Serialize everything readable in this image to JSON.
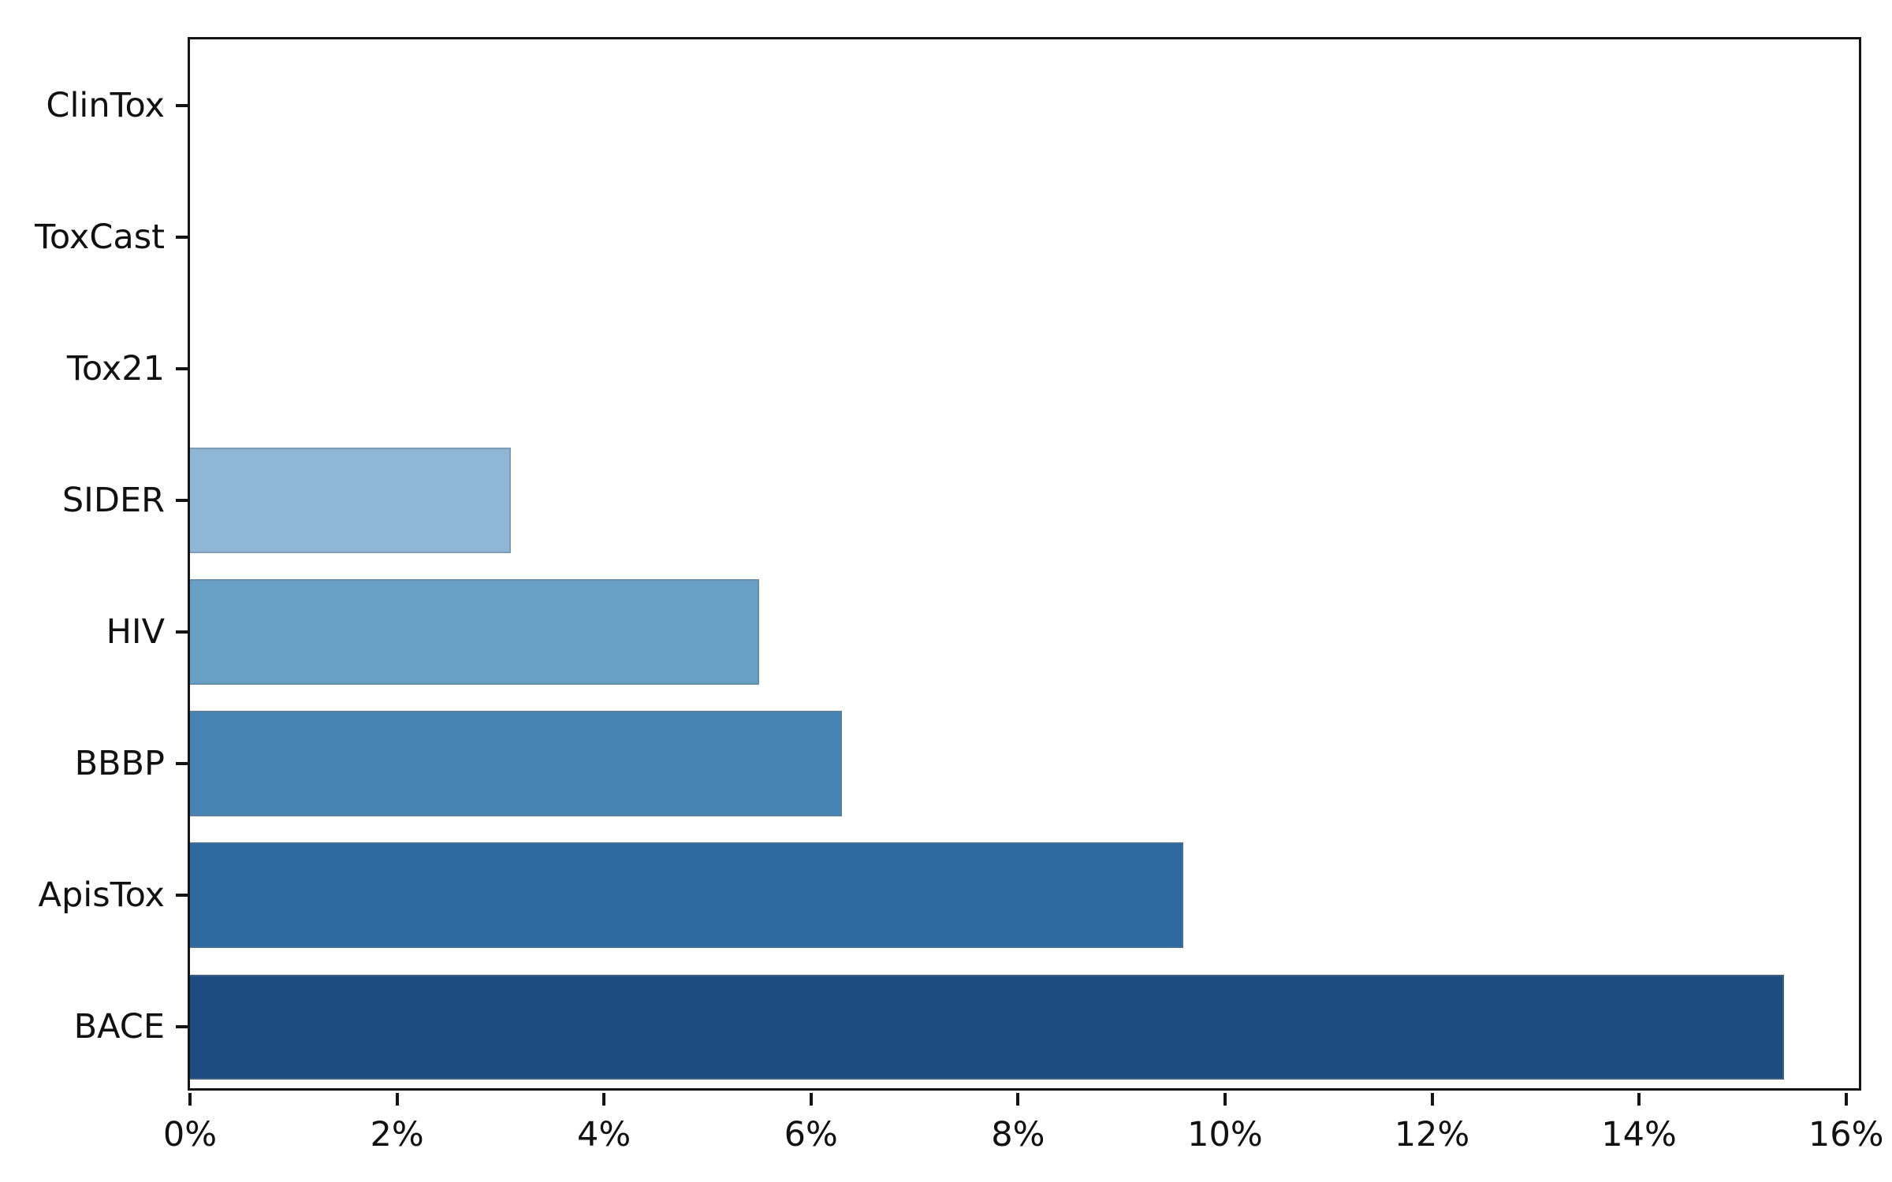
{
  "chart_data": {
    "type": "bar",
    "orientation": "horizontal",
    "title": "",
    "xlabel": "",
    "ylabel": "",
    "categories": [
      "ClinTox",
      "ToxCast",
      "Tox21",
      "SIDER",
      "HIV",
      "BBBP",
      "ApisTox",
      "BACE"
    ],
    "values": [
      0,
      0,
      0,
      3.1,
      5.5,
      6.3,
      9.6,
      15.4
    ],
    "value_unit": "%",
    "bar_colors": [
      "#f7fbff",
      "#e2edf8",
      "#cde0f1",
      "#8fb7d5",
      "#67a0c4",
      "#4784b4",
      "#2d689f",
      "#1d4c80"
    ],
    "xlim": [
      0,
      16.17
    ],
    "x_ticks": [
      {
        "value": 0,
        "label": "0%"
      },
      {
        "value": 2,
        "label": "2%"
      },
      {
        "value": 4,
        "label": "4%"
      },
      {
        "value": 6,
        "label": "6%"
      },
      {
        "value": 8,
        "label": "8%"
      },
      {
        "value": 10,
        "label": "10%"
      },
      {
        "value": 12,
        "label": "12%"
      },
      {
        "value": 14,
        "label": "14%"
      },
      {
        "value": 16,
        "label": "16%"
      }
    ],
    "grid": false,
    "legend": null,
    "background_color": "#ffffff",
    "spine_color": "#141414",
    "bar_fraction_of_row": 0.8
  }
}
